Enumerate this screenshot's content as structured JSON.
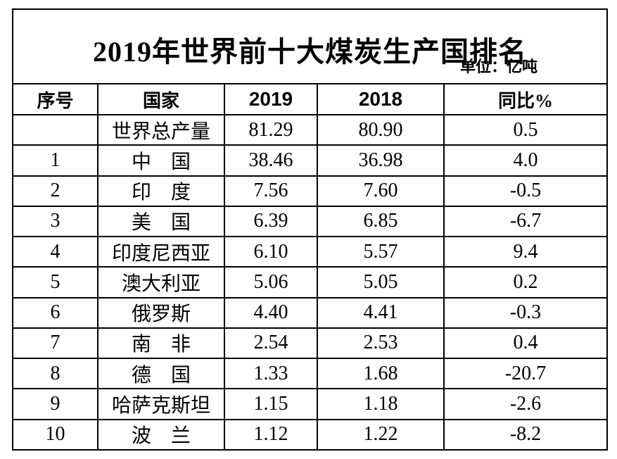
{
  "title": "2019年世界前十大煤炭生产国排名",
  "unit_label": "单位：亿吨",
  "colors": {
    "background": "#ffffff",
    "border": "#000000",
    "text": "#000000"
  },
  "chart_data": {
    "type": "table",
    "title": "2019年世界前十大煤炭生产国排名",
    "unit": "亿吨",
    "columns": [
      "序号",
      "国家",
      "2019",
      "2018",
      "同比%"
    ],
    "rows": [
      [
        "",
        "世界总产量",
        "81.29",
        "80.90",
        "0.5"
      ],
      [
        "1",
        "中　国",
        "38.46",
        "36.98",
        "4.0"
      ],
      [
        "2",
        "印　度",
        "7.56",
        "7.60",
        "-0.5"
      ],
      [
        "3",
        "美　国",
        "6.39",
        "6.85",
        "-6.7"
      ],
      [
        "4",
        "印度尼西亚",
        "6.10",
        "5.57",
        "9.4"
      ],
      [
        "5",
        "澳大利亚",
        "5.06",
        "5.05",
        "0.2"
      ],
      [
        "6",
        "俄罗斯",
        "4.40",
        "4.41",
        "-0.3"
      ],
      [
        "7",
        "南　非",
        "2.54",
        "2.53",
        "0.4"
      ],
      [
        "8",
        "德　国",
        "1.33",
        "1.68",
        "-20.7"
      ],
      [
        "9",
        "哈萨克斯坦",
        "1.15",
        "1.18",
        "-2.6"
      ],
      [
        "10",
        "波　兰",
        "1.12",
        "1.22",
        "-8.2"
      ]
    ]
  }
}
